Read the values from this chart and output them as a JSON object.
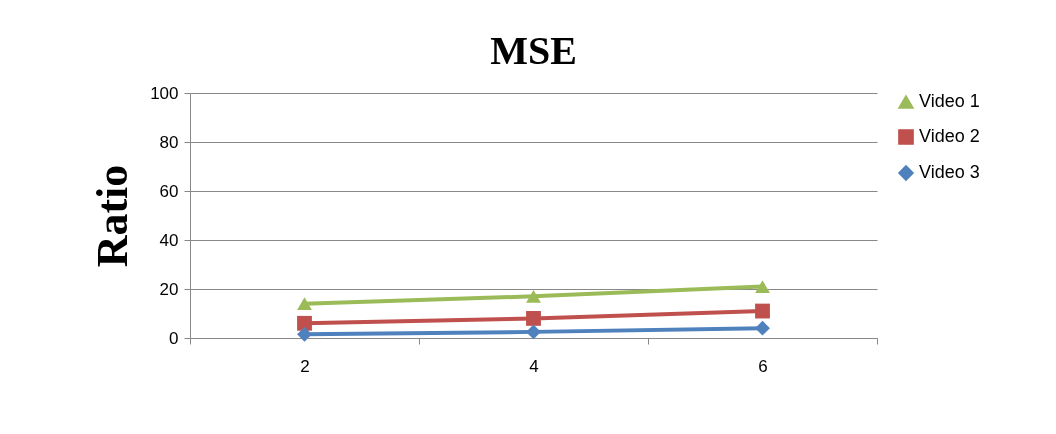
{
  "chart_data": {
    "type": "line",
    "title": "MSE",
    "ylabel": "Ratio",
    "categories": [
      "2",
      "4",
      "6"
    ],
    "series": [
      {
        "name": "Video 1",
        "color": "#9bbb59",
        "marker": "triangle",
        "values": [
          14,
          17,
          21
        ]
      },
      {
        "name": "Video 2",
        "color": "#c0504d",
        "marker": "square",
        "values": [
          6,
          8,
          11
        ]
      },
      {
        "name": "Video 3",
        "color": "#4f81bd",
        "marker": "diamond",
        "values": [
          1.5,
          2.5,
          4
        ]
      }
    ],
    "ylim": [
      0,
      100
    ],
    "yticks": [
      0,
      20,
      40,
      60,
      80,
      100
    ],
    "grid": "y",
    "legend": "right"
  }
}
